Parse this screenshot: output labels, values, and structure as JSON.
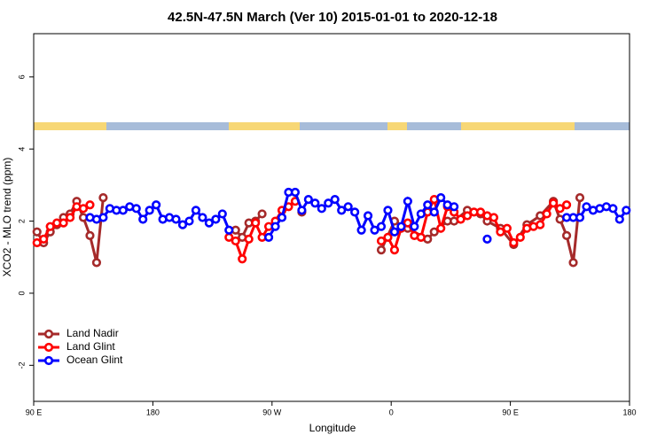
{
  "chart_data": {
    "type": "line",
    "title": "42.5N-47.5N March (Ver 10)   2015-01-01 to 2020-12-18",
    "x_label": "Longitude",
    "y_label": "XCO2 - MLO trend (ppm)",
    "xlim": [
      90,
      540
    ],
    "ylim": [
      -3,
      7.2
    ],
    "xticks": [
      {
        "value": 90,
        "label": "90 E"
      },
      180,
      {
        "value": 270,
        "label": "90 W"
      },
      {
        "value": 360,
        "label": "0"
      },
      {
        "value": 450,
        "label": "90 E"
      },
      {
        "value": 540,
        "label": "180"
      }
    ],
    "yticks": [
      -2,
      0,
      2,
      4,
      6
    ],
    "legend": "bottom-left",
    "series": [
      {
        "name": "Land Nadir",
        "color": "#a52a2a",
        "x": [
          92.5,
          97.5,
          102.5,
          107.5,
          112.5,
          117.5,
          122.5,
          127.5,
          132.5,
          137.5,
          142.5,
          190,
          242.5,
          247.5,
          252.5,
          257.5,
          262.5,
          280,
          292.5,
          320,
          352.5,
          362.5,
          372.5,
          387.5,
          392.5,
          402.5,
          407.5,
          417.5,
          427.5,
          432.5,
          442.5,
          452.5,
          462.5,
          472.5,
          482.5,
          487.5,
          492.5,
          497.5,
          502.5
        ],
        "values": [
          1.7,
          1.4,
          1.7,
          1.9,
          2.1,
          2.2,
          2.55,
          2.1,
          1.6,
          0.85,
          2.65,
          null,
          1.75,
          1.55,
          1.95,
          2.0,
          2.2,
          null,
          2.25,
          null,
          1.2,
          2.0,
          1.8,
          1.5,
          1.7,
          2.0,
          2.0,
          2.3,
          2.2,
          2.0,
          1.8,
          1.35,
          1.9,
          2.15,
          2.55,
          2.05,
          1.6,
          0.85,
          2.65
        ]
      },
      {
        "name": "Land Glint",
        "color": "#ff0000",
        "x": [
          92.5,
          97.5,
          102.5,
          107.5,
          112.5,
          117.5,
          122.5,
          127.5,
          132.5,
          190,
          237.5,
          242.5,
          247.5,
          252.5,
          257.5,
          262.5,
          267.5,
          272.5,
          277.5,
          282.5,
          287.5,
          320,
          352.5,
          357.5,
          362.5,
          367.5,
          372.5,
          377.5,
          382.5,
          387.5,
          392.5,
          397.5,
          402.5,
          407.5,
          412.5,
          417.5,
          422.5,
          427.5,
          432.5,
          437.5,
          442.5,
          447.5,
          452.5,
          457.5,
          462.5,
          467.5,
          472.5,
          477.5,
          482.5,
          487.5,
          492.5
        ],
        "values": [
          1.4,
          1.5,
          1.85,
          1.95,
          1.95,
          2.1,
          2.4,
          2.35,
          2.45,
          null,
          1.55,
          1.45,
          0.95,
          1.5,
          1.95,
          1.55,
          1.85,
          2.0,
          2.3,
          2.4,
          2.55,
          null,
          1.45,
          1.55,
          1.2,
          1.8,
          1.95,
          1.6,
          1.55,
          2.25,
          2.6,
          1.8,
          2.4,
          2.25,
          2.05,
          2.15,
          2.25,
          2.25,
          2.15,
          2.1,
          1.7,
          1.8,
          1.4,
          1.55,
          1.8,
          1.85,
          1.9,
          2.2,
          2.5,
          2.35,
          2.45
        ]
      },
      {
        "name": "Ocean Glint",
        "color": "#0000ff",
        "x": [
          132.5,
          137.5,
          142.5,
          147.5,
          152.5,
          157.5,
          162.5,
          167.5,
          172.5,
          177.5,
          182.5,
          187.5,
          192.5,
          197.5,
          202.5,
          207.5,
          212.5,
          217.5,
          222.5,
          227.5,
          232.5,
          237.5,
          250,
          267.5,
          272.5,
          277.5,
          282.5,
          287.5,
          292.5,
          297.5,
          302.5,
          307.5,
          312.5,
          317.5,
          322.5,
          327.5,
          332.5,
          337.5,
          342.5,
          347.5,
          352.5,
          357.5,
          362.5,
          367.5,
          372.5,
          377.5,
          382.5,
          387.5,
          392.5,
          397.5,
          402.5,
          407.5,
          420,
          432.5,
          460,
          492.5,
          497.5,
          502.5,
          507.5,
          512.5,
          517.5,
          522.5,
          527.5,
          532.5,
          537.5
        ],
        "values": [
          2.1,
          2.05,
          2.1,
          2.35,
          2.3,
          2.3,
          2.4,
          2.35,
          2.05,
          2.3,
          2.45,
          2.05,
          2.1,
          2.05,
          1.9,
          2.0,
          2.3,
          2.1,
          1.95,
          2.05,
          2.2,
          1.75,
          null,
          1.55,
          1.85,
          2.1,
          2.8,
          2.8,
          2.3,
          2.6,
          2.5,
          2.35,
          2.5,
          2.6,
          2.3,
          2.4,
          2.25,
          1.75,
          2.15,
          1.75,
          1.85,
          2.3,
          1.7,
          1.85,
          2.55,
          1.85,
          2.2,
          2.45,
          2.25,
          2.65,
          2.45,
          2.4,
          null,
          1.5,
          null,
          2.1,
          2.1,
          2.1,
          2.4,
          2.3,
          2.35,
          2.4,
          2.35,
          2.05,
          2.3
        ]
      }
    ]
  }
}
